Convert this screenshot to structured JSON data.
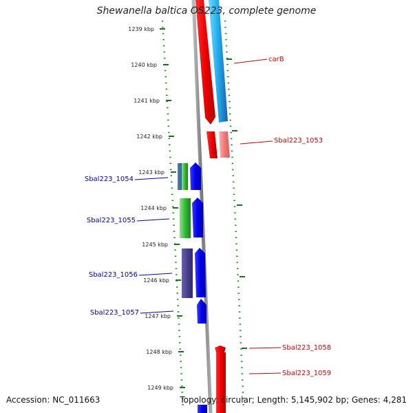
{
  "title": "Shewanella baltica OS223, complete genome",
  "accession": "Accession: NC_011663",
  "topology": "Topology: circular; Length: 5,145,902 bp; Genes: 4,281",
  "scale": {
    "ticks": [
      "1239 kbp",
      "1240 kbp",
      "1241 kbp",
      "1242 kbp",
      "1243 kbp",
      "1244 kbp",
      "1245 kbp",
      "1246 kbp",
      "1247 kbp",
      "1248 kbp",
      "1249 kbp"
    ]
  },
  "genes": {
    "forward_color": "#ee0000",
    "reverse_color": "#0000ee",
    "labels": [
      {
        "id": "carB",
        "text": "carB",
        "color": "#cc0000"
      },
      {
        "id": "sbal223-1053",
        "text": "Sbal223_1053",
        "color": "#cc0000"
      },
      {
        "id": "sbal223-1054",
        "text": "Sbal223_1054",
        "color": "#0000aa"
      },
      {
        "id": "sbal223-1055",
        "text": "Sbal223_1055",
        "color": "#0000aa"
      },
      {
        "id": "sbal223-1056",
        "text": "Sbal223_1056",
        "color": "#0000aa"
      },
      {
        "id": "sbal223-1057",
        "text": "Sbal223_1057",
        "color": "#0000aa"
      },
      {
        "id": "sbal223-1058",
        "text": "Sbal223_1058",
        "color": "#cc0000"
      },
      {
        "id": "sbal223-1059",
        "text": "Sbal223_1059",
        "color": "#cc0000"
      }
    ]
  }
}
